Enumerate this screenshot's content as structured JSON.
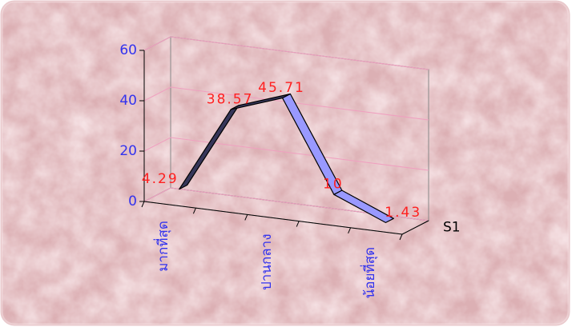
{
  "chart_data": {
    "type": "line",
    "categories": [
      "มากที่สุด",
      null,
      "ปานกลาง",
      null,
      "น้อยที่สุด"
    ],
    "series": [
      {
        "name": "S1",
        "color": "#9999ff",
        "values": [
          4.29,
          38.57,
          45.71,
          10,
          1.43
        ]
      }
    ],
    "ylim": [
      0,
      60
    ],
    "yticks": [
      0,
      20,
      40,
      60
    ],
    "grid": true,
    "axis_text_color": "#3333ee",
    "value_label_color": "#ff2020",
    "grid_color": "#f0a0c0"
  }
}
